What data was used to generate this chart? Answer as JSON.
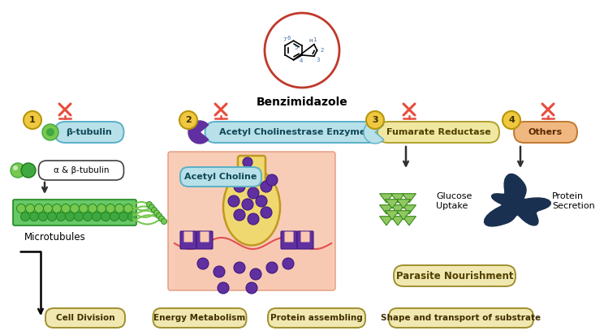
{
  "bg_color": "#ffffff",
  "title": "Benzimidazole",
  "circle_color": "#c0392b",
  "inhibit_color": "#e74c3c",
  "badge_fill": "#f0c840",
  "badge_edge": "#b8960a",
  "box1_fill": "#b8e0e8",
  "box1_edge": "#5ab0c8",
  "box2_fill": "#b8e0e8",
  "box2_edge": "#5ab0c8",
  "box3_fill": "#f0e8a0",
  "box3_edge": "#b0a030",
  "box4_fill": "#f0b880",
  "box4_edge": "#c07830",
  "bottom_fill": "#f0e8b0",
  "bottom_edge": "#a09030",
  "parasite_fill": "#f0e8b0",
  "parasite_edge": "#a09030",
  "green1": "#78c850",
  "green2": "#40a840",
  "green3": "#a8d878",
  "purple": "#6030a0",
  "neuron_fill": "#f0d870",
  "skin_fill": "#f8c8b0",
  "skin_edge": "#e09070",
  "dark_blue": "#1a3050",
  "arrow_col": "#303030",
  "label1": "β-tubulin",
  "label2": "Acetyl Cholinestrase Enzyme",
  "label3": "Fumarate Reductase",
  "label4": "Others",
  "tubulin_lbl": "α & β-tubulin",
  "micro_lbl": "Microtubules",
  "ach_lbl": "Acetyl Choline",
  "glucose_lbl": "Glucose\nUptake",
  "protein_lbl": "Protein\nSecretion",
  "parasite_lbl": "Parasite Nourishment",
  "bottom_labels": [
    "Cell Division",
    "Energy Metabolism",
    "Protein assembling",
    "Shape and transport of substrate"
  ]
}
